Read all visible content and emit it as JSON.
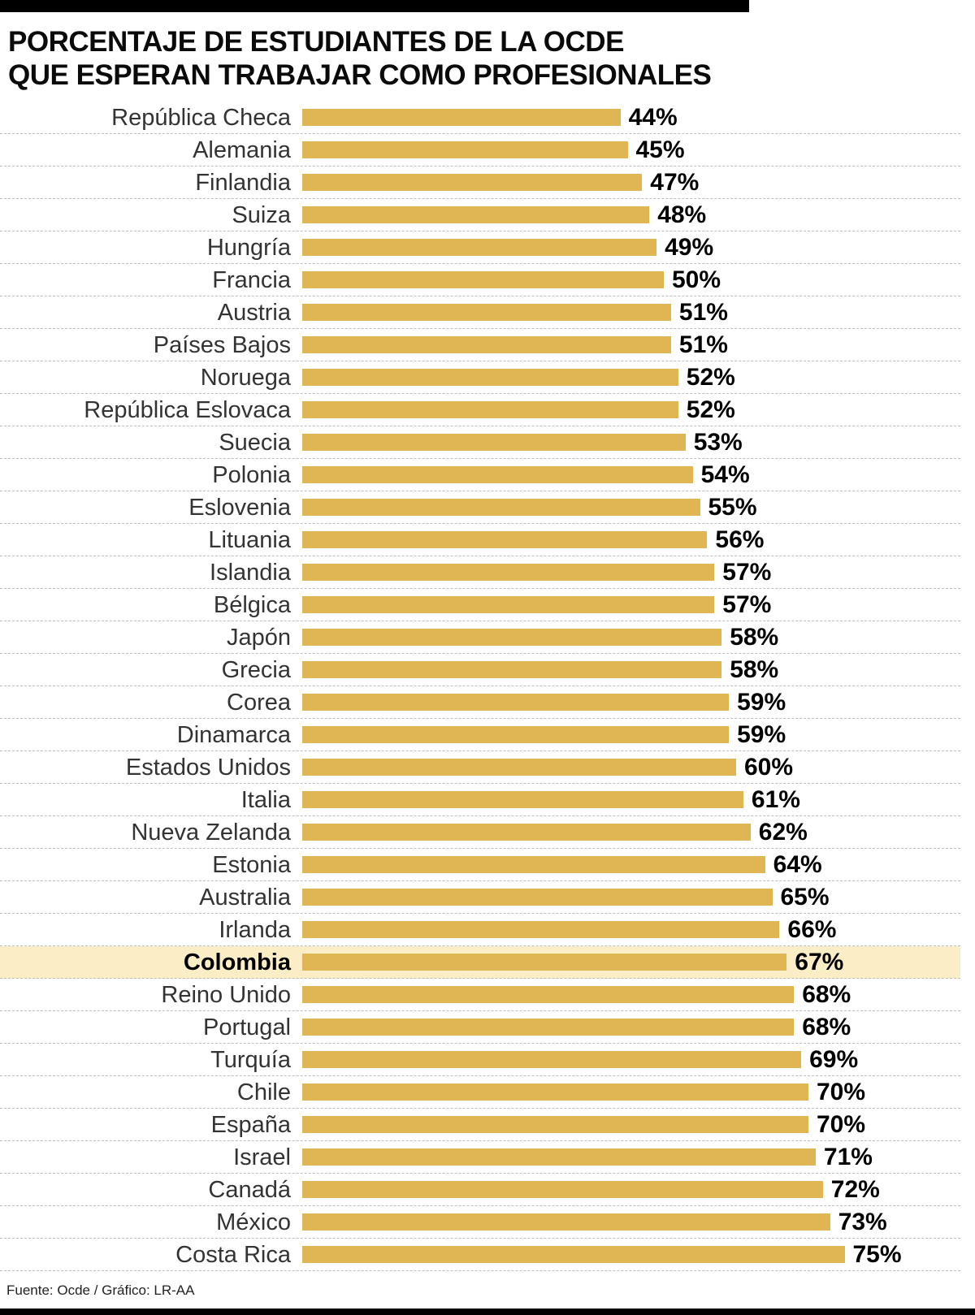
{
  "title": {
    "line1": "PORCENTAJE DE ESTUDIANTES DE LA OCDE",
    "line2": "QUE ESPERAN TRABAJAR COMO PROFESIONALES"
  },
  "footer": {
    "source": "Fuente: Ocde / Gráfico: LR-AA"
  },
  "colors": {
    "bar": "#E0B554",
    "highlight": "#FBEEC6",
    "grid": "#BDBDBD"
  },
  "chart_data": {
    "type": "bar",
    "orientation": "horizontal",
    "title": "Porcentaje de estudiantes de la OCDE que esperan trabajar como profesionales",
    "value_suffix": "%",
    "xlim": [
      0,
      75
    ],
    "grid": "dashed-horizontal",
    "highlight_category": "Colombia",
    "categories": [
      "República Checa",
      "Alemania",
      "Finlandia",
      "Suiza",
      "Hungría",
      "Francia",
      "Austria",
      "Países Bajos",
      "Noruega",
      "República Eslovaca",
      "Suecia",
      "Polonia",
      "Eslovenia",
      "Lituania",
      "Islandia",
      "Bélgica",
      "Japón",
      "Grecia",
      "Corea",
      "Dinamarca",
      "Estados Unidos",
      "Italia",
      "Nueva Zelanda",
      "Estonia",
      "Australia",
      "Irlanda",
      "Colombia",
      "Reino Unido",
      "Portugal",
      "Turquía",
      "Chile",
      "España",
      "Israel",
      "Canadá",
      "México",
      "Costa Rica"
    ],
    "values": [
      44,
      45,
      47,
      48,
      49,
      50,
      51,
      51,
      52,
      52,
      53,
      54,
      55,
      56,
      57,
      57,
      58,
      58,
      59,
      59,
      60,
      61,
      62,
      64,
      65,
      66,
      67,
      68,
      68,
      69,
      70,
      70,
      71,
      72,
      73,
      75
    ]
  }
}
